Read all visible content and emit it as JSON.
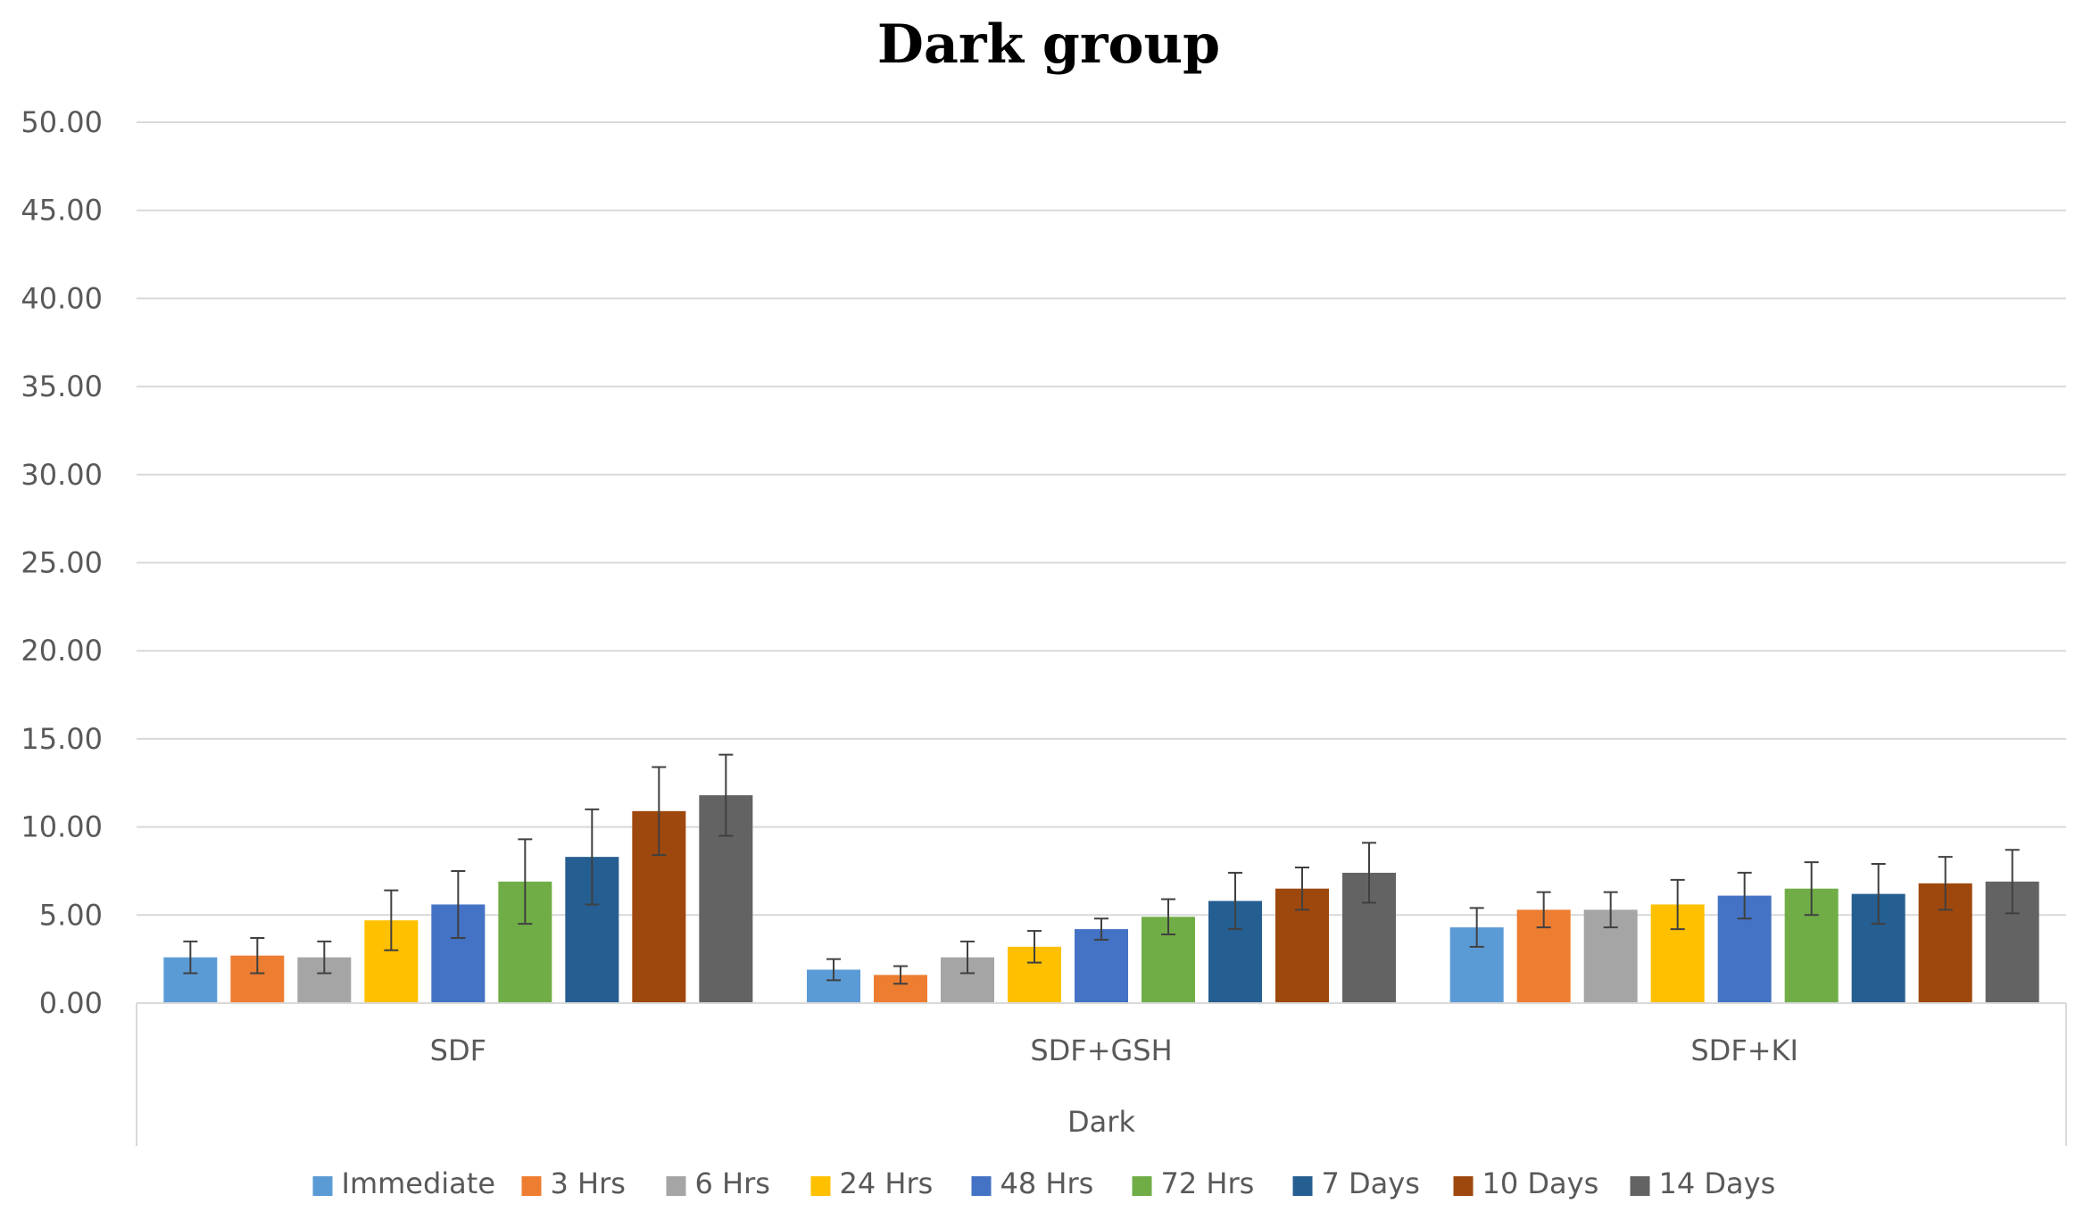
{
  "chart_data": {
    "type": "bar",
    "title": "Dark group",
    "xlabel": "Dark",
    "ylabel": "",
    "ylim": [
      0,
      50
    ],
    "yticks": [
      "0.00",
      "5.00",
      "10.00",
      "15.00",
      "20.00",
      "25.00",
      "30.00",
      "35.00",
      "40.00",
      "45.00",
      "50.00"
    ],
    "grid": true,
    "legend_position": "bottom",
    "categories": [
      "SDF",
      "SDF+GSH",
      "SDF+KI"
    ],
    "series": [
      {
        "name": "Immediate",
        "color": "#5b9bd5",
        "values": [
          2.6,
          1.9,
          4.3
        ],
        "error": [
          0.9,
          0.6,
          1.1
        ]
      },
      {
        "name": "3 Hrs",
        "color": "#ed7d31",
        "values": [
          2.7,
          1.6,
          5.3
        ],
        "error": [
          1.0,
          0.5,
          1.0
        ]
      },
      {
        "name": "6 Hrs",
        "color": "#a5a5a5",
        "values": [
          2.6,
          2.6,
          5.3
        ],
        "error": [
          0.9,
          0.9,
          1.0
        ]
      },
      {
        "name": "24 Hrs",
        "color": "#ffc000",
        "values": [
          4.7,
          3.2,
          5.6
        ],
        "error": [
          1.7,
          0.9,
          1.4
        ]
      },
      {
        "name": "48 Hrs",
        "color": "#4472c4",
        "values": [
          5.6,
          4.2,
          6.1
        ],
        "error": [
          1.9,
          0.6,
          1.3
        ]
      },
      {
        "name": "72 Hrs",
        "color": "#70ad47",
        "values": [
          6.9,
          4.9,
          6.5
        ],
        "error": [
          2.4,
          1.0,
          1.5
        ]
      },
      {
        "name": "7 Days",
        "color": "#255e91",
        "values": [
          8.3,
          5.8,
          6.2
        ],
        "error": [
          2.7,
          1.6,
          1.7
        ]
      },
      {
        "name": "10 Days",
        "color": "#9e480e",
        "values": [
          10.9,
          6.5,
          6.8
        ],
        "error": [
          2.5,
          1.2,
          1.5
        ]
      },
      {
        "name": "14 Days",
        "color": "#636363",
        "values": [
          11.8,
          7.4,
          6.9
        ],
        "error": [
          2.3,
          1.7,
          1.8
        ]
      }
    ]
  }
}
